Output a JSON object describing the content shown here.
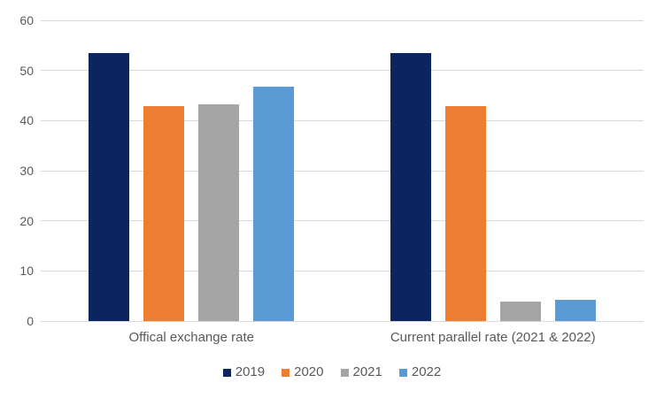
{
  "chart_data": {
    "type": "bar",
    "title": "",
    "xlabel": "",
    "ylabel": "",
    "categories": [
      "Offical exchange rate",
      "Current parallel rate (2021 & 2022)"
    ],
    "series": [
      {
        "name": "2019",
        "color": "#0d255e",
        "values": [
          53.5,
          53.5
        ]
      },
      {
        "name": "2020",
        "color": "#ed7d31",
        "values": [
          42.8,
          42.8
        ]
      },
      {
        "name": "2021",
        "color": "#a5a5a5",
        "values": [
          43.2,
          3.8
        ]
      },
      {
        "name": "2022",
        "color": "#5b9bd5",
        "values": [
          46.8,
          4.2
        ]
      }
    ],
    "ylim": [
      0,
      60
    ],
    "yticks": [
      0,
      10,
      20,
      30,
      40,
      50,
      60
    ],
    "grid": true,
    "legend_position": "bottom"
  },
  "colors": {
    "gridline": "#d9d9d9",
    "axis_text": "#595959",
    "background": "#ffffff"
  }
}
